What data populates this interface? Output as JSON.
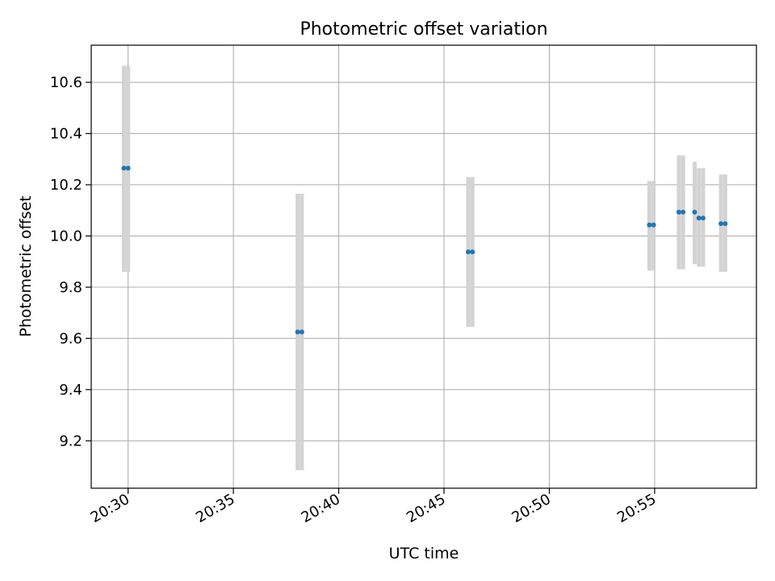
{
  "chart_data": {
    "type": "scatter",
    "title": "Photometric offset variation",
    "xlabel": "UTC time",
    "ylabel": "Photometric offset",
    "xlim": [
      "20:28:15",
      "20:59:50"
    ],
    "ylim": [
      9.015,
      10.745
    ],
    "x_ticks": [
      "20:30",
      "20:35",
      "20:40",
      "20:45",
      "20:50",
      "20:55"
    ],
    "y_ticks": [
      9.2,
      9.4,
      9.6,
      9.8,
      10.0,
      10.2,
      10.4,
      10.6
    ],
    "grid": true,
    "colors": {
      "points": "#1f77b4",
      "error_bars": "#d3d3d3",
      "grid": "#b0b0b0"
    },
    "series": [
      {
        "points": [
          {
            "x": "20:29:48",
            "y": 10.265,
            "err_low": 9.86,
            "err_high": 10.665
          },
          {
            "x": "20:30:00",
            "y": 10.265,
            "err_low": 9.86,
            "err_high": 10.665
          },
          {
            "x": "20:38:03",
            "y": 9.625,
            "err_low": 9.085,
            "err_high": 10.165
          },
          {
            "x": "20:38:15",
            "y": 9.625,
            "err_low": 9.085,
            "err_high": 10.165
          },
          {
            "x": "20:46:09",
            "y": 9.938,
            "err_low": 9.645,
            "err_high": 10.23
          },
          {
            "x": "20:46:21",
            "y": 9.938,
            "err_low": 9.645,
            "err_high": 10.23
          },
          {
            "x": "20:54:45",
            "y": 10.043,
            "err_low": 9.865,
            "err_high": 10.215
          },
          {
            "x": "20:54:57",
            "y": 10.043,
            "err_low": 9.865,
            "err_high": 10.215
          },
          {
            "x": "20:56:09",
            "y": 10.093,
            "err_low": 9.87,
            "err_high": 10.315
          },
          {
            "x": "20:56:21",
            "y": 10.093,
            "err_low": 9.87,
            "err_high": 10.315
          },
          {
            "x": "20:56:54",
            "y": 10.093,
            "err_low": 9.89,
            "err_high": 10.29
          },
          {
            "x": "20:57:06",
            "y": 10.07,
            "err_low": 9.88,
            "err_high": 10.265
          },
          {
            "x": "20:57:18",
            "y": 10.07,
            "err_low": 9.88,
            "err_high": 10.265
          },
          {
            "x": "20:58:09",
            "y": 10.048,
            "err_low": 9.86,
            "err_high": 10.24
          },
          {
            "x": "20:58:21",
            "y": 10.048,
            "err_low": 9.86,
            "err_high": 10.24
          }
        ]
      }
    ]
  }
}
